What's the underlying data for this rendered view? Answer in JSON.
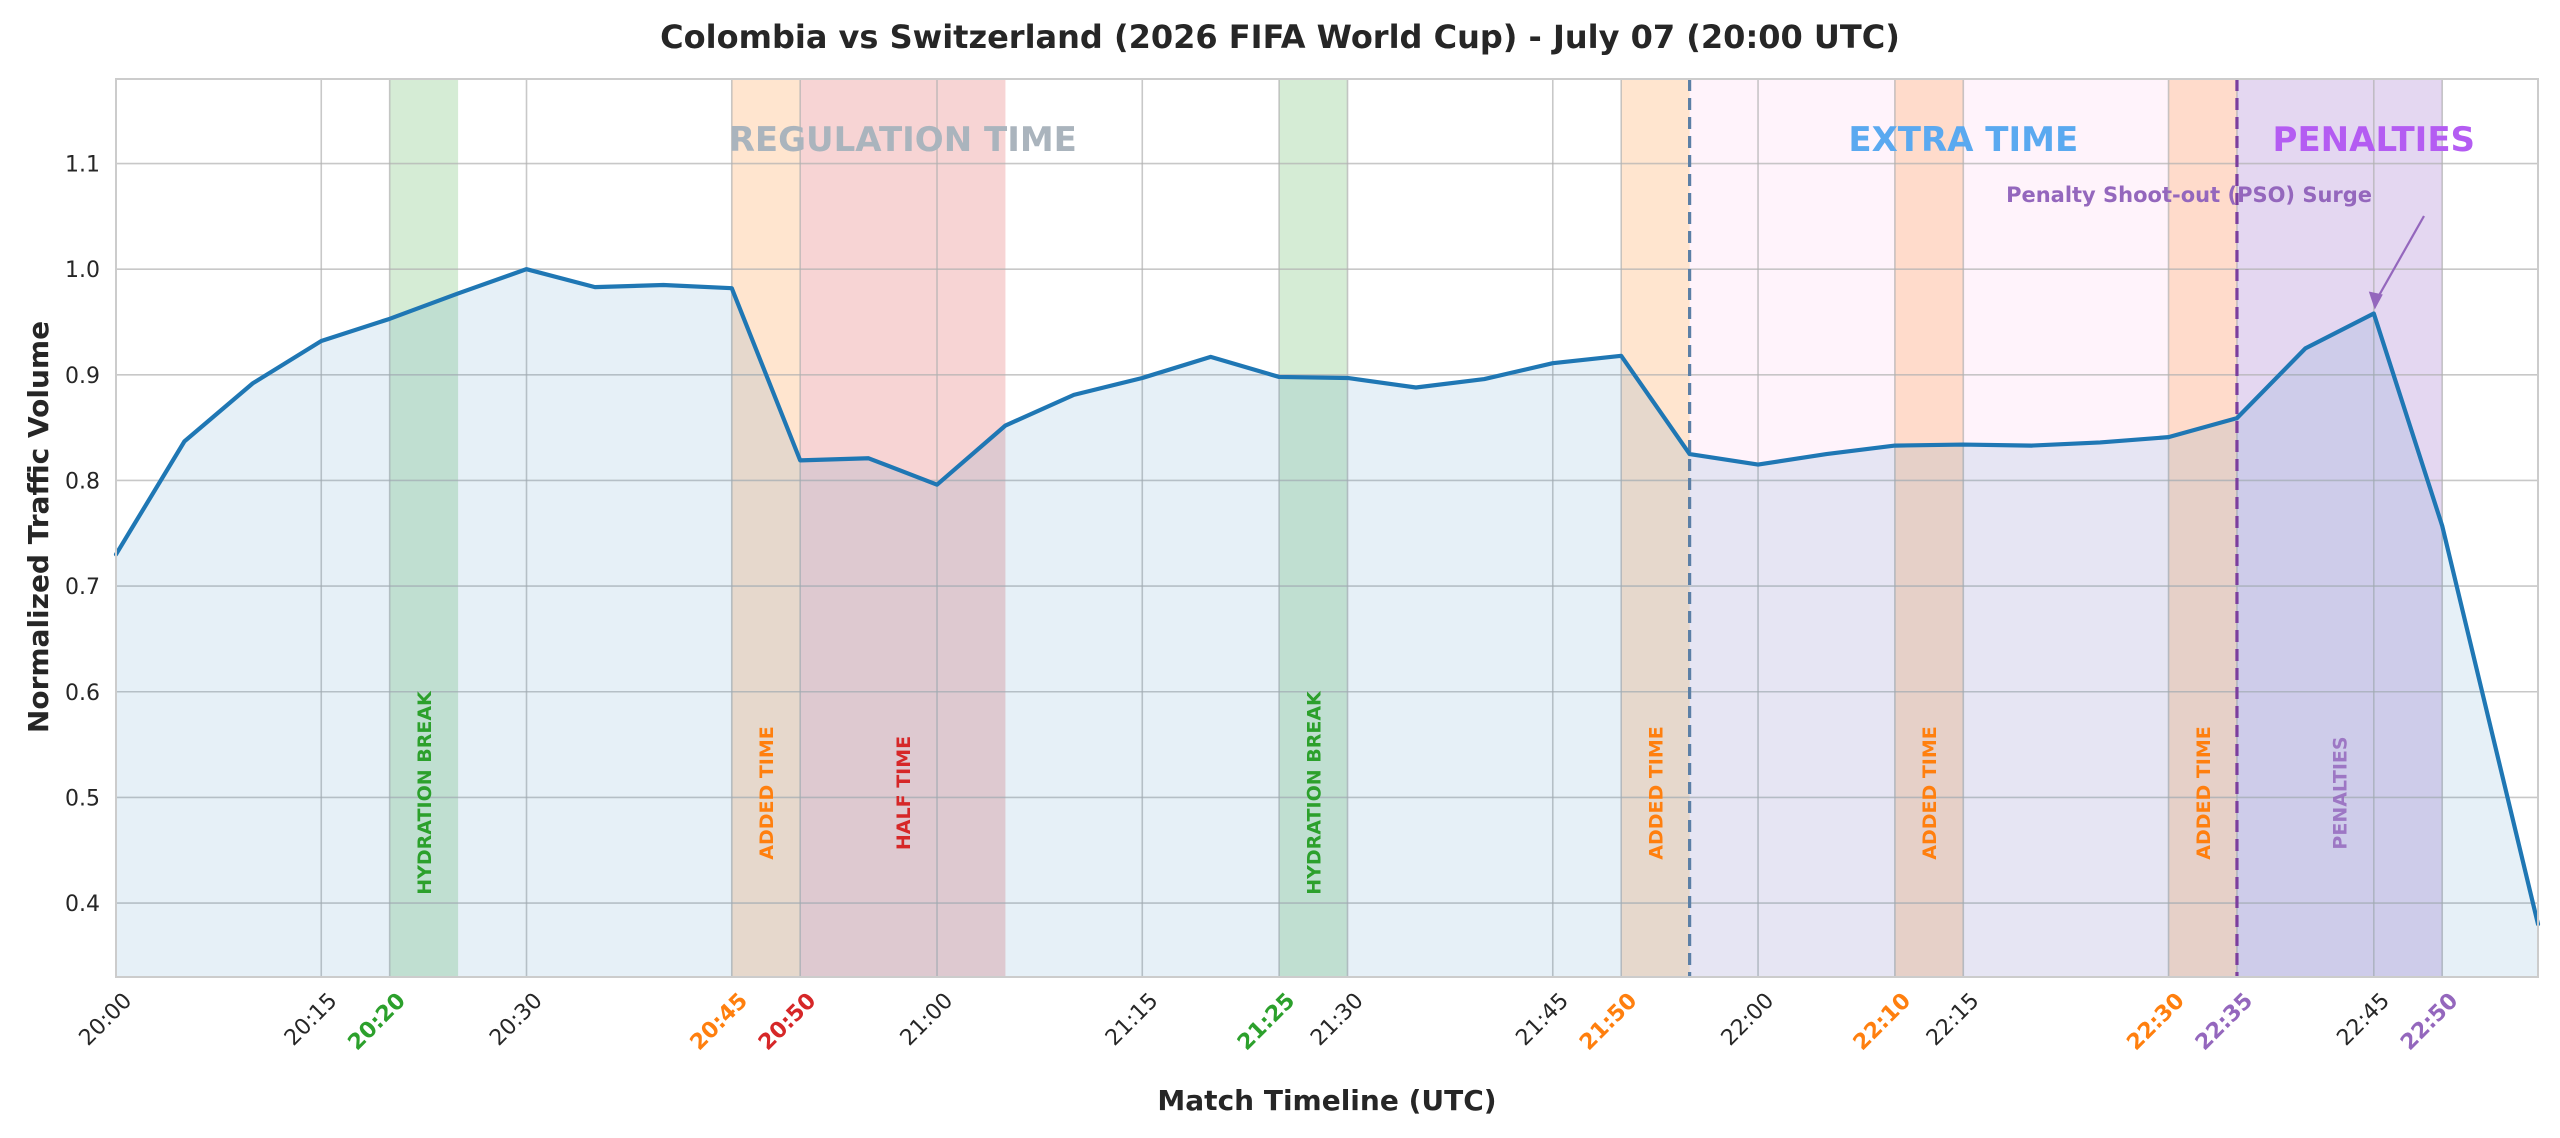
{
  "chart_data": {
    "type": "line",
    "title": "Colombia vs Switzerland (2026 FIFA World Cup) - July 07 (20:00 UTC)",
    "xlabel": "Match Timeline (UTC)",
    "ylabel": "Normalized Traffic Volume",
    "ylim": [
      0.33,
      1.18
    ],
    "xlim_minutes": [
      0,
      177
    ],
    "yticks": [
      "0.4",
      "0.5",
      "0.6",
      "0.7",
      "0.8",
      "0.9",
      "1.0",
      "1.1"
    ],
    "grid": true,
    "series": [
      {
        "name": "",
        "color": "#1f77b4",
        "x": [
          "20:00",
          "20:05",
          "20:10",
          "20:15",
          "20:20",
          "20:25",
          "20:30",
          "20:35",
          "20:40",
          "20:45",
          "20:50",
          "20:55",
          "21:00",
          "21:05",
          "21:10",
          "21:15",
          "21:20",
          "21:25",
          "21:30",
          "21:35",
          "21:40",
          "21:45",
          "21:50",
          "21:55",
          "22:00",
          "22:05",
          "22:10",
          "22:15",
          "22:20",
          "22:25",
          "22:30",
          "22:35",
          "22:40",
          "22:45",
          "22:50",
          "22:57"
        ],
        "values": [
          0.73,
          0.837,
          0.892,
          0.932,
          0.953,
          0.977,
          1.0,
          0.983,
          0.985,
          0.982,
          0.819,
          0.821,
          0.796,
          0.852,
          0.881,
          0.897,
          0.917,
          0.898,
          0.897,
          0.888,
          0.896,
          0.911,
          0.918,
          0.825,
          0.815,
          0.825,
          0.833,
          0.834,
          0.833,
          0.836,
          0.841,
          0.859,
          0.925,
          0.958,
          0.757,
          0.38
        ]
      }
    ],
    "xticks": [
      {
        "label": "20:00",
        "color": "#262626",
        "bold": false,
        "min": 0
      },
      {
        "label": "20:15",
        "color": "#262626",
        "bold": false,
        "min": 15
      },
      {
        "label": "20:20",
        "color": "#2ca02c",
        "bold": true,
        "min": 20
      },
      {
        "label": "20:30",
        "color": "#262626",
        "bold": false,
        "min": 30
      },
      {
        "label": "20:45",
        "color": "#ff7f0e",
        "bold": true,
        "min": 45
      },
      {
        "label": "20:50",
        "color": "#d62728",
        "bold": true,
        "min": 50
      },
      {
        "label": "21:00",
        "color": "#262626",
        "bold": false,
        "min": 60
      },
      {
        "label": "21:15",
        "color": "#262626",
        "bold": false,
        "min": 75
      },
      {
        "label": "21:25",
        "color": "#2ca02c",
        "bold": true,
        "min": 85
      },
      {
        "label": "21:30",
        "color": "#262626",
        "bold": false,
        "min": 90
      },
      {
        "label": "21:45",
        "color": "#262626",
        "bold": false,
        "min": 105
      },
      {
        "label": "21:50",
        "color": "#ff7f0e",
        "bold": true,
        "min": 110
      },
      {
        "label": "22:00",
        "color": "#262626",
        "bold": false,
        "min": 120
      },
      {
        "label": "22:10",
        "color": "#ff7f0e",
        "bold": true,
        "min": 130
      },
      {
        "label": "22:15",
        "color": "#262626",
        "bold": false,
        "min": 135
      },
      {
        "label": "22:30",
        "color": "#ff7f0e",
        "bold": true,
        "min": 150
      },
      {
        "label": "22:35",
        "color": "#9467bd",
        "bold": true,
        "min": 155
      },
      {
        "label": "22:45",
        "color": "#262626",
        "bold": false,
        "min": 165
      },
      {
        "label": "22:50",
        "color": "#9467bd",
        "bold": true,
        "min": 170
      }
    ],
    "phases": [
      {
        "label": "REGULATION TIME",
        "color": "#aab4bd",
        "start": 0,
        "end": 115,
        "fill": null
      },
      {
        "label": "EXTRA TIME",
        "color": "#5aa9f0",
        "start": 115,
        "end": 155,
        "fill": "#ffe8f8"
      },
      {
        "label": "PENALTIES",
        "color": "#b45cf2",
        "start": 155,
        "end": 170,
        "fill": "#cdb6e6"
      }
    ],
    "bands": [
      {
        "label": "HYDRATION BREAK",
        "start": 20,
        "end": 25,
        "fill": "#2ca02c",
        "text_color": "#2ca02c"
      },
      {
        "label": "ADDED TIME",
        "start": 45,
        "end": 50,
        "fill": "#ff7f0e",
        "text_color": "#ff7f0e"
      },
      {
        "label": "HALF TIME",
        "start": 50,
        "end": 65,
        "fill": "#d62728",
        "text_color": "#d62728"
      },
      {
        "label": "HYDRATION BREAK",
        "start": 85,
        "end": 90,
        "fill": "#2ca02c",
        "text_color": "#2ca02c"
      },
      {
        "label": "ADDED TIME",
        "start": 110,
        "end": 115,
        "fill": "#ff7f0e",
        "text_color": "#ff7f0e"
      },
      {
        "label": "ADDED TIME",
        "start": 130,
        "end": 135,
        "fill": "#ff7f0e",
        "text_color": "#ff7f0e"
      },
      {
        "label": "ADDED TIME",
        "start": 150,
        "end": 155,
        "fill": "#ff7f0e",
        "text_color": "#ff7f0e"
      },
      {
        "label": "PENALTIES",
        "start": 155,
        "end": 170,
        "fill": null,
        "text_color": "#9467bd"
      }
    ],
    "vlines": [
      {
        "min": 115,
        "color": "#5b7fa6"
      },
      {
        "min": 155,
        "color": "#7b3f9e"
      }
    ],
    "annotation": {
      "text": "Penalty Shoot-out (PSO) Surge",
      "color": "#9467bd",
      "target_time": "22:45",
      "target_value": 0.958
    }
  }
}
